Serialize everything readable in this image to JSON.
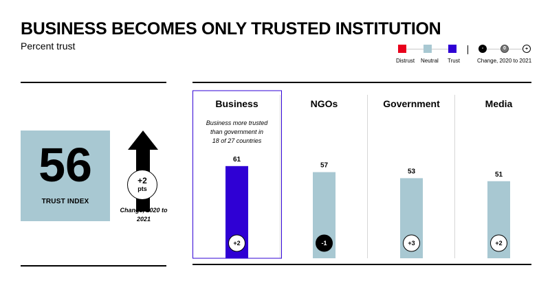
{
  "title": "BUSINESS BECOMES ONLY TRUSTED INSTITUTION",
  "subtitle": "Percent trust",
  "legend": {
    "distrust": "Distrust",
    "neutral": "Neutral",
    "trust": "Trust",
    "change_symbols": {
      "negative": "-",
      "zero": "0",
      "positive": "+"
    },
    "change_label": "Change, 2020 to 2021",
    "colors": {
      "distrust": "#e8001c",
      "neutral": "#a8c8d2",
      "trust": "#2f00d4"
    }
  },
  "trust_index": {
    "value": "56",
    "label": "TRUST INDEX",
    "change": "+2",
    "change_unit": "pts",
    "change_caption": "Change, 2020 to 2021"
  },
  "chart_data": {
    "type": "bar",
    "categories": [
      "Business",
      "NGOs",
      "Government",
      "Media"
    ],
    "values": [
      61,
      57,
      53,
      51
    ],
    "changes": [
      "+2",
      "-1",
      "+3",
      "+2"
    ],
    "trust_levels": [
      "trust",
      "neutral",
      "neutral",
      "neutral"
    ],
    "annotation": "Business more trusted than government in 18 of 27 countries",
    "ylim": [
      0,
      100
    ],
    "grid": false
  }
}
